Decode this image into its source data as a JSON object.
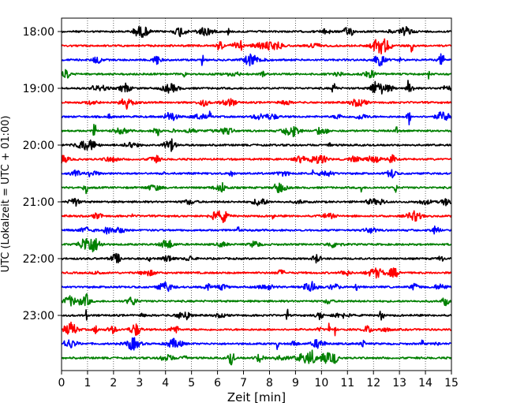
{
  "chart_data": {
    "type": "line",
    "title": "",
    "xlabel": "Zeit  [min]",
    "ylabel": "UTC (Lokalzeit = UTC + 01:00)",
    "xlim": [
      0,
      15
    ],
    "x_ticks": [
      "0",
      "1",
      "2",
      "3",
      "4",
      "5",
      "6",
      "7",
      "8",
      "9",
      "10",
      "11",
      "12",
      "13",
      "14",
      "15"
    ],
    "y_ticks": [
      "18:00",
      "19:00",
      "20:00",
      "21:00",
      "22:00",
      "23:00"
    ],
    "grid": "vertical dotted",
    "trace_colors": [
      "#000000",
      "#ff0000",
      "#0000ff",
      "#008000"
    ],
    "series": [
      {
        "start": "18:00",
        "color": "#000000"
      },
      {
        "start": "18:15",
        "color": "#ff0000"
      },
      {
        "start": "18:30",
        "color": "#0000ff"
      },
      {
        "start": "18:45",
        "color": "#008000"
      },
      {
        "start": "19:00",
        "color": "#000000"
      },
      {
        "start": "19:15",
        "color": "#ff0000"
      },
      {
        "start": "19:30",
        "color": "#0000ff"
      },
      {
        "start": "19:45",
        "color": "#008000"
      },
      {
        "start": "20:00",
        "color": "#000000"
      },
      {
        "start": "20:15",
        "color": "#ff0000"
      },
      {
        "start": "20:30",
        "color": "#0000ff"
      },
      {
        "start": "20:45",
        "color": "#008000"
      },
      {
        "start": "21:00",
        "color": "#000000"
      },
      {
        "start": "21:15",
        "color": "#ff0000"
      },
      {
        "start": "21:30",
        "color": "#0000ff"
      },
      {
        "start": "21:45",
        "color": "#008000"
      },
      {
        "start": "22:00",
        "color": "#000000"
      },
      {
        "start": "22:15",
        "color": "#ff0000"
      },
      {
        "start": "22:30",
        "color": "#0000ff"
      },
      {
        "start": "22:45",
        "color": "#008000"
      },
      {
        "start": "23:00",
        "color": "#000000"
      },
      {
        "start": "23:15",
        "color": "#ff0000"
      },
      {
        "start": "23:30",
        "color": "#0000ff"
      },
      {
        "start": "23:45",
        "color": "#008000"
      }
    ]
  }
}
